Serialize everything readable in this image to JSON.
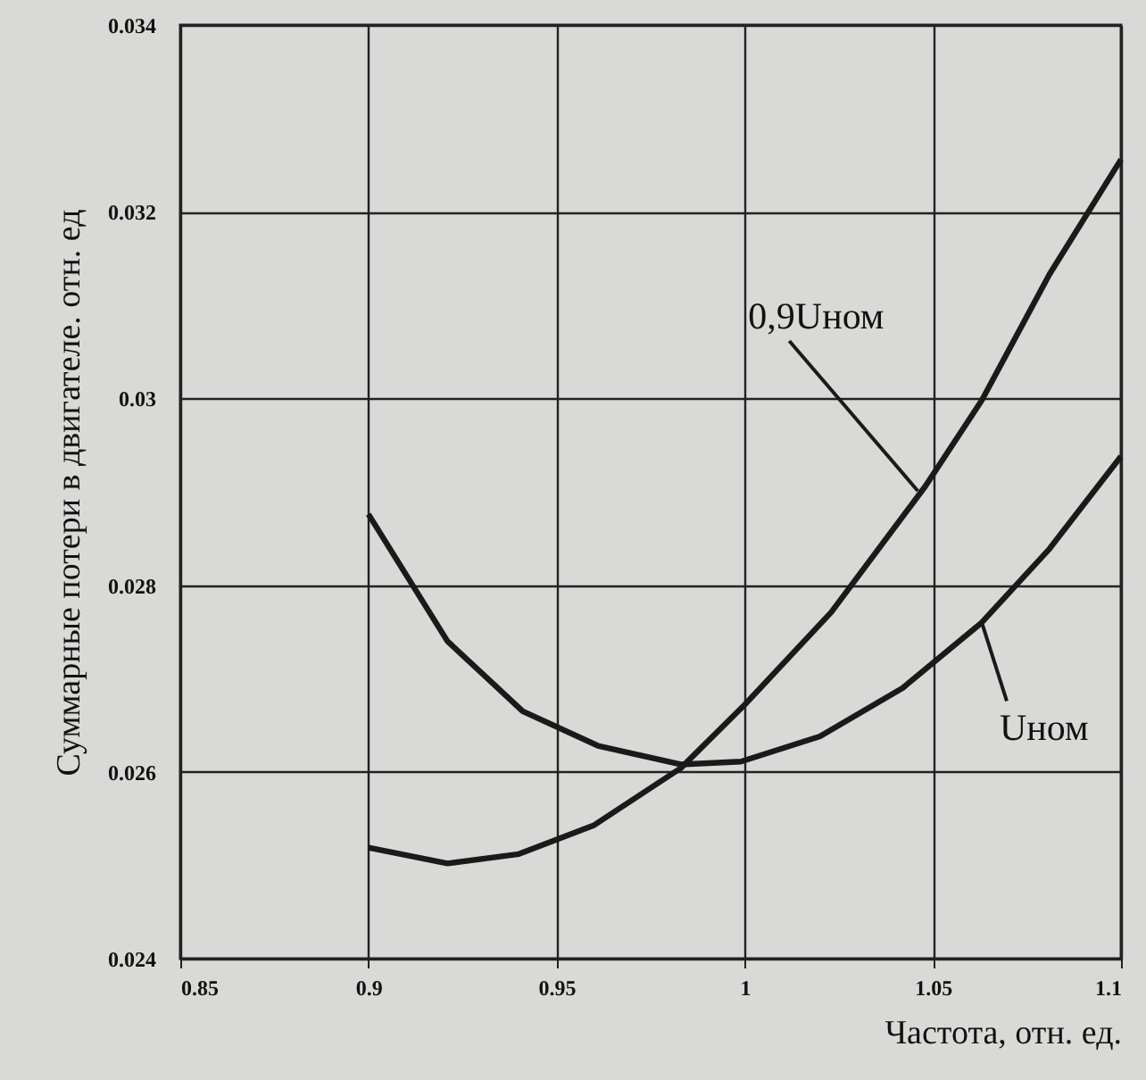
{
  "chart_data": {
    "type": "line",
    "xlabel": "Частота, отн. ед.",
    "ylabel": "Суммарные потери в двигателе. отн. ед",
    "xlim": [
      0.85,
      1.1
    ],
    "xticks": [
      0.85,
      0.9,
      0.95,
      1,
      1.05,
      1.1
    ],
    "ylim": [
      0.024,
      0.034
    ],
    "yticks": [
      0.024,
      0.026,
      0.028,
      0.03,
      0.032,
      0.034
    ],
    "grid": true,
    "marker": "none",
    "line_style": "solid",
    "series": [
      {
        "color": "#1a1a1a",
        "x": [
          0.9,
          0.921,
          0.941,
          0.961,
          0.983,
          0.999,
          1.02,
          1.042,
          1.063,
          1.081,
          1.1
        ],
        "values": [
          0.02876,
          0.0274,
          0.02665,
          0.02628,
          0.02608,
          0.02611,
          0.02638,
          0.0269,
          0.0276,
          0.02839,
          0.02938
        ]
      },
      {
        "color": "#1a1a1a",
        "x": [
          0.9,
          0.921,
          0.94,
          0.96,
          0.983,
          1.0,
          1.023,
          1.048,
          1.063,
          1.081,
          1.1
        ],
        "values": [
          0.02519,
          0.02502,
          0.02512,
          0.02543,
          0.02604,
          0.02672,
          0.02771,
          0.02906,
          0.02998,
          0.03133,
          0.03256
        ]
      }
    ],
    "annotations": [
      {
        "text": "0,9Uном",
        "x": 1.046,
        "y": 0.02901
      },
      {
        "text": "Uном",
        "x": 1.063,
        "y": 0.0276
      }
    ]
  }
}
